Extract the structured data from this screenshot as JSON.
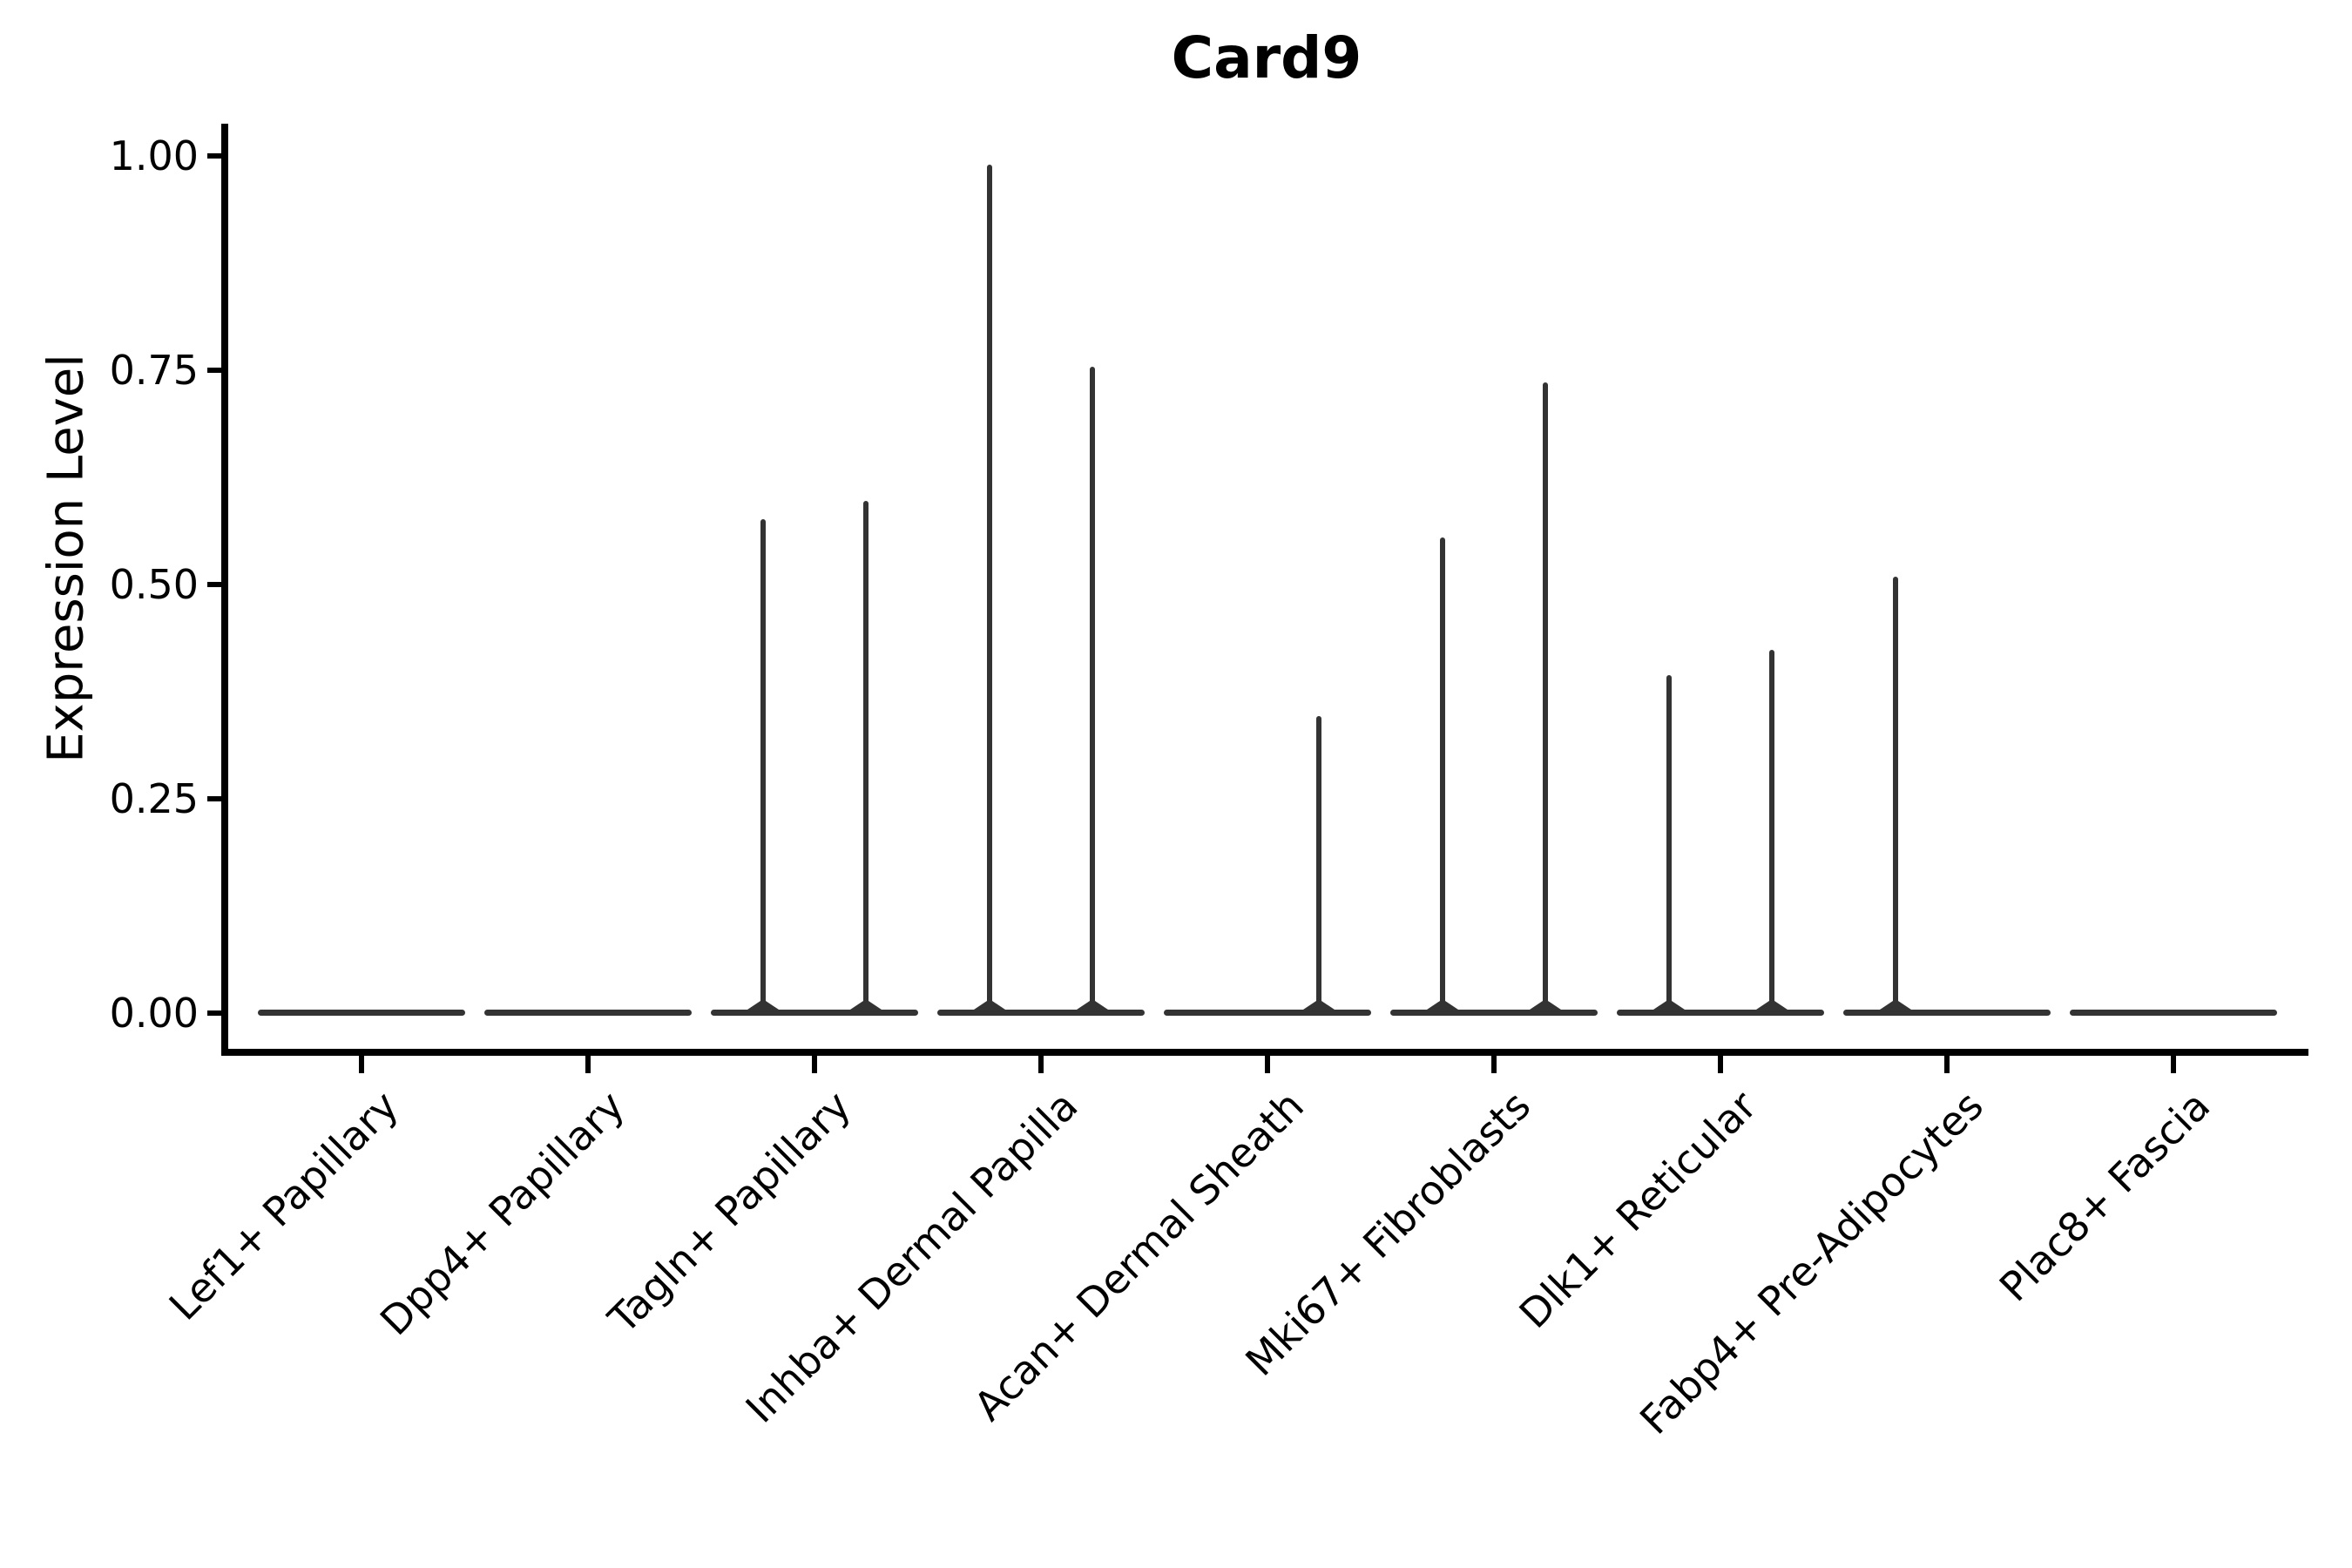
{
  "title": "Card9",
  "y_axis": {
    "label": "Expression Level",
    "ticks": [
      {
        "label": "1.00",
        "value": 1.0
      },
      {
        "label": "0.75",
        "value": 0.75
      },
      {
        "label": "0.50",
        "value": 0.5
      },
      {
        "label": "0.25",
        "value": 0.25
      },
      {
        "label": "0.00",
        "value": 0.0
      }
    ]
  },
  "chart_data": {
    "type": "violin",
    "title": "Card9",
    "xlabel": "",
    "ylabel": "Expression Level",
    "ylim": [
      0,
      1.0
    ],
    "grid": false,
    "legend": "none",
    "baseline_value": 0.0,
    "categories": [
      "Lef1+ Papillary",
      "Dpp4+ Papillary",
      "Tagln+ Papillary",
      "Inhba+ Dermal Papilla",
      "Acan+ Dermal Sheath",
      "Mki67+ Fibroblasts",
      "Dlk1+ Reticular",
      "Fabp4+ Pre-Adipocytes",
      "Plac8+ Fascia"
    ],
    "series": [
      {
        "category": "Lef1+ Papillary",
        "spikes": []
      },
      {
        "category": "Dpp4+ Papillary",
        "spikes": []
      },
      {
        "category": "Tagln+ Papillary",
        "spikes": [
          {
            "side": "left",
            "value": 0.576
          },
          {
            "side": "right",
            "value": 0.598
          }
        ]
      },
      {
        "category": "Inhba+ Dermal Papilla",
        "spikes": [
          {
            "side": "left",
            "value": 0.99
          },
          {
            "side": "right",
            "value": 0.754
          }
        ]
      },
      {
        "category": "Acan+ Dermal Sheath",
        "spikes": [
          {
            "side": "right",
            "value": 0.347
          }
        ]
      },
      {
        "category": "Mki67+ Fibroblasts",
        "spikes": [
          {
            "side": "left",
            "value": 0.555
          },
          {
            "side": "right",
            "value": 0.736
          }
        ]
      },
      {
        "category": "Dlk1+ Reticular",
        "spikes": [
          {
            "side": "left",
            "value": 0.394
          },
          {
            "side": "right",
            "value": 0.424
          }
        ]
      },
      {
        "category": "Fabp4+ Pre-Adipocytes",
        "spikes": [
          {
            "side": "left",
            "value": 0.509
          }
        ]
      },
      {
        "category": "Plac8+ Fascia",
        "spikes": []
      }
    ]
  },
  "colors": {
    "violin": "#333333",
    "axis": "#000000",
    "background": "#ffffff"
  }
}
